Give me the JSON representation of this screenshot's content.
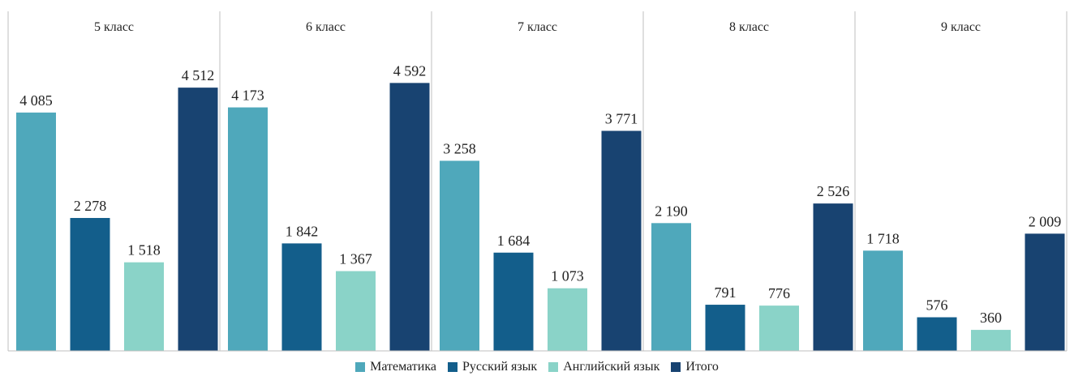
{
  "chart_data": {
    "type": "bar",
    "panels": [
      "5 класс",
      "6 класс",
      "7 класс",
      "8 класс",
      "9 класс"
    ],
    "series": [
      {
        "name": "Математика",
        "color": "#4fa8bb",
        "values": [
          4085,
          4173,
          3258,
          2190,
          1718
        ]
      },
      {
        "name": "Русский язык",
        "color": "#135e8b",
        "values": [
          2278,
          1842,
          1684,
          791,
          576
        ]
      },
      {
        "name": "Английский язык",
        "color": "#8ad3c8",
        "values": [
          1518,
          1367,
          1073,
          776,
          360
        ]
      },
      {
        "name": "Итого",
        "color": "#184371",
        "values": [
          4512,
          4592,
          3771,
          2526,
          2009
        ]
      }
    ],
    "value_labels": [
      [
        "4 085",
        "4 173",
        "3 258",
        "2 190",
        "1 718"
      ],
      [
        "2 278",
        "1 842",
        "1 684",
        "791",
        "576"
      ],
      [
        "1 518",
        "1 367",
        "1 073",
        "776",
        "360"
      ],
      [
        "4 512",
        "4 592",
        "3 771",
        "2 526",
        "2 009"
      ]
    ],
    "ylim": [
      0,
      6000
    ],
    "legend_position": "bottom",
    "grid": false
  }
}
